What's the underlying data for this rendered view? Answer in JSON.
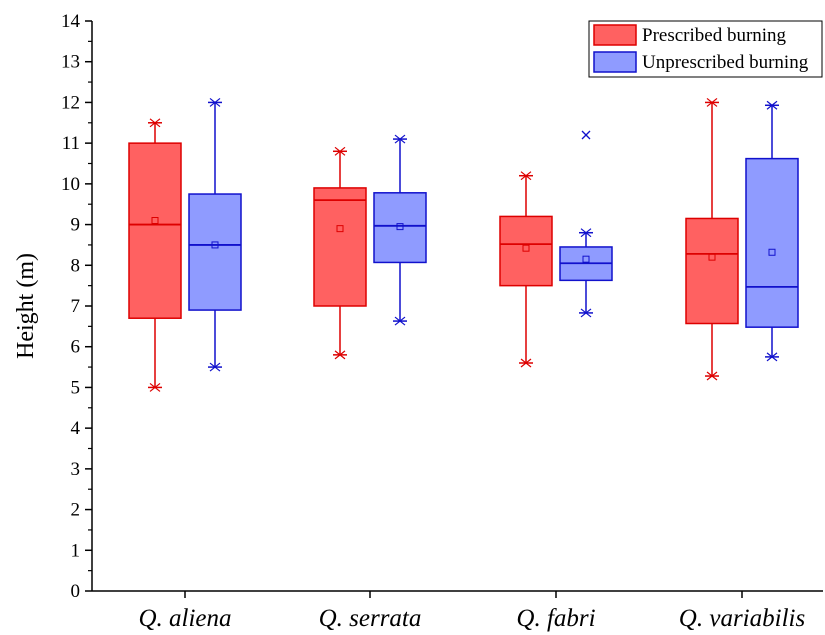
{
  "chart_data": {
    "type": "box",
    "ylabel": "Height (m)",
    "xlabel": "",
    "ylim": [
      0,
      14
    ],
    "yticks": [
      0,
      1,
      2,
      3,
      4,
      5,
      6,
      7,
      8,
      9,
      10,
      11,
      12,
      13,
      14
    ],
    "grid": false,
    "legend_position": "top-right",
    "categories": [
      "Q. aliena",
      "Q. serrata",
      "Q. fabri",
      "Q. variabilis"
    ],
    "series": [
      {
        "name": "Prescribed burning",
        "fill": "#ff6161",
        "stroke": "#dd0000",
        "boxes": [
          {
            "min": 5.0,
            "q1": 6.7,
            "median": 9.0,
            "q3": 11.0,
            "max": 11.5,
            "mean": 9.1,
            "outliers": []
          },
          {
            "min": 5.8,
            "q1": 7.0,
            "median": 9.6,
            "q3": 9.9,
            "max": 10.8,
            "mean": 8.9,
            "outliers": []
          },
          {
            "min": 5.6,
            "q1": 7.5,
            "median": 8.52,
            "q3": 9.2,
            "max": 10.2,
            "mean": 8.42,
            "outliers": []
          },
          {
            "min": 5.28,
            "q1": 6.57,
            "median": 8.28,
            "q3": 9.15,
            "max": 12.0,
            "mean": 8.2,
            "outliers": []
          }
        ]
      },
      {
        "name": "Unprescribed burning",
        "fill": "#8f9bff",
        "stroke": "#1111cc",
        "boxes": [
          {
            "min": 5.5,
            "q1": 6.9,
            "median": 8.5,
            "q3": 9.75,
            "max": 12.0,
            "mean": 8.5,
            "outliers": []
          },
          {
            "min": 6.63,
            "q1": 8.07,
            "median": 8.97,
            "q3": 9.78,
            "max": 11.1,
            "mean": 8.95,
            "outliers": []
          },
          {
            "min": 6.83,
            "q1": 7.63,
            "median": 8.05,
            "q3": 8.45,
            "max": 8.8,
            "mean": 8.15,
            "outliers": [
              11.2
            ]
          },
          {
            "min": 5.75,
            "q1": 6.48,
            "median": 7.47,
            "q3": 10.62,
            "max": 11.93,
            "mean": 8.32,
            "outliers": []
          }
        ]
      }
    ]
  }
}
